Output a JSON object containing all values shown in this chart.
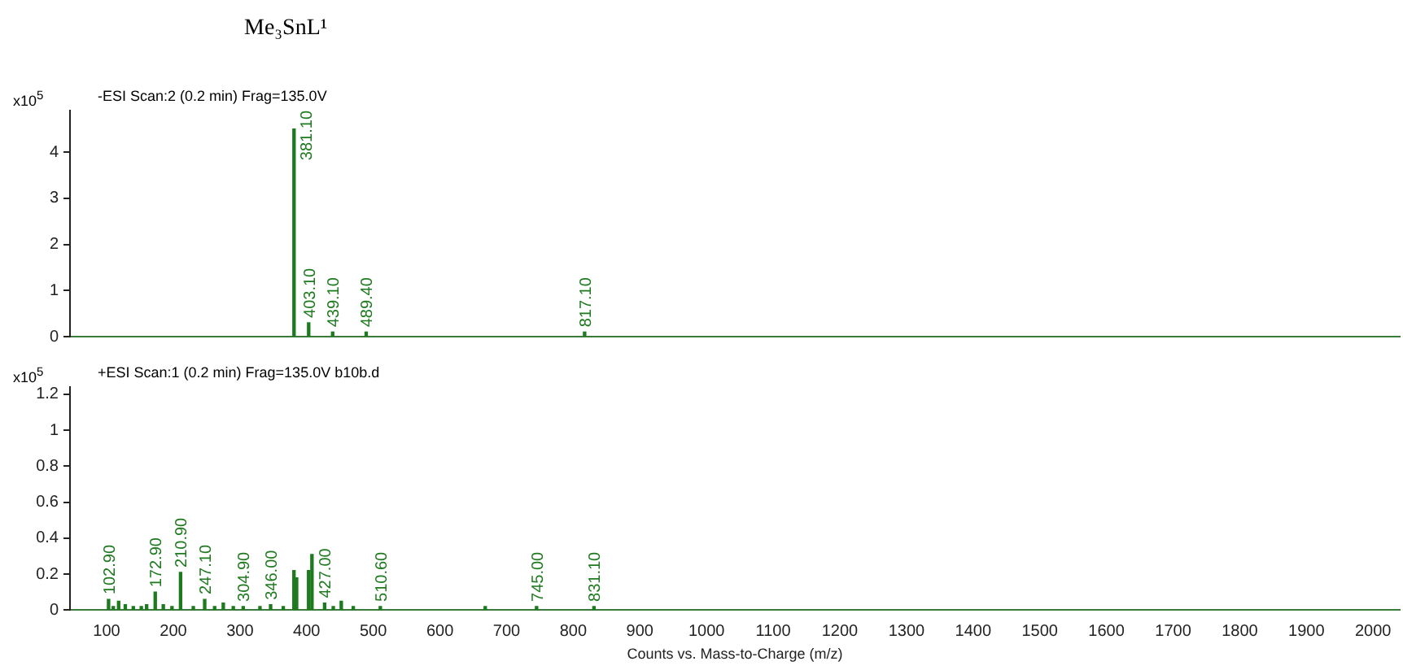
{
  "chart_data": [
    {
      "type": "bar",
      "title": "Me₃SnL¹",
      "subtitle": "-ESI Scan:2 (0.2 min) Frag=135.0V",
      "ylabel": "x10$^{5}$",
      "color": "#1e7a1e",
      "x": [
        381.1,
        403.1,
        439.1,
        489.4,
        817.1
      ],
      "values": [
        4.5,
        0.3,
        0.1,
        0.1,
        0.1
      ],
      "annotations": [
        {
          "text": "381.10",
          "x": 381.1,
          "y": 4.5
        },
        {
          "text": "403.10",
          "x": 403.1,
          "y": 0.3
        },
        {
          "text": "439.10",
          "x": 439.1,
          "y": 0.1
        },
        {
          "text": "489.40",
          "x": 489.4,
          "y": 0.1
        },
        {
          "text": "817.10",
          "x": 817.1,
          "y": 0.1
        }
      ],
      "xlim": [
        45,
        2040
      ],
      "xticks": [
        100,
        200,
        300,
        400,
        500,
        600,
        700,
        800,
        900,
        1000,
        1100,
        1200,
        1300,
        1400,
        1500,
        1600,
        1700,
        1800,
        1900,
        2000
      ],
      "ylim": [
        0,
        4.9
      ],
      "yticks": [
        0,
        1,
        2,
        3,
        4
      ],
      "tick_labels": "y"
    },
    {
      "type": "bar",
      "subtitle": "+ESI Scan:1 (0.2 min) Frag=135.0V b10b.d",
      "ylabel": "x10$^{5}$",
      "xlabel": "Counts vs. Mass-to-Charge (m/z)",
      "color": "#1e7a1e",
      "x": [
        102.9,
        110,
        118,
        128,
        140,
        152,
        160,
        172.9,
        185,
        198,
        210.9,
        230,
        247.1,
        262,
        275,
        290,
        304.9,
        330,
        346,
        365,
        381,
        385,
        403,
        408,
        427,
        440,
        452,
        470,
        510.6,
        668,
        745,
        831.1
      ],
      "values": [
        0.06,
        0.02,
        0.05,
        0.03,
        0.02,
        0.02,
        0.03,
        0.1,
        0.03,
        0.02,
        0.21,
        0.02,
        0.06,
        0.02,
        0.04,
        0.02,
        0.02,
        0.02,
        0.03,
        0.02,
        0.22,
        0.18,
        0.22,
        0.31,
        0.04,
        0.02,
        0.05,
        0.02,
        0.02,
        0.02,
        0.02,
        0.02
      ],
      "annotations": [
        {
          "text": "102.90",
          "x": 102.9,
          "y": 0.06
        },
        {
          "text": "172.90",
          "x": 172.9,
          "y": 0.1
        },
        {
          "text": "210.90",
          "x": 210.9,
          "y": 0.21
        },
        {
          "text": "247.10",
          "x": 247.1,
          "y": 0.06
        },
        {
          "text": "304.90",
          "x": 304.9,
          "y": 0.02
        },
        {
          "text": "346.00",
          "x": 346,
          "y": 0.03
        },
        {
          "text": "427.00",
          "x": 427,
          "y": 0.04
        },
        {
          "text": "510.60",
          "x": 510.6,
          "y": 0.02
        },
        {
          "text": "745.00",
          "x": 745,
          "y": 0.02
        },
        {
          "text": "831.10",
          "x": 831.1,
          "y": 0.02
        }
      ],
      "xlim": [
        45,
        2040
      ],
      "xticks": [
        100,
        200,
        300,
        400,
        500,
        600,
        700,
        800,
        900,
        1000,
        1100,
        1200,
        1300,
        1400,
        1500,
        1600,
        1700,
        1800,
        1900,
        2000
      ],
      "ylim": [
        0,
        1.24
      ],
      "yticks": [
        0,
        0.2,
        0.4,
        0.6,
        0.8,
        1,
        1.2
      ]
    }
  ]
}
